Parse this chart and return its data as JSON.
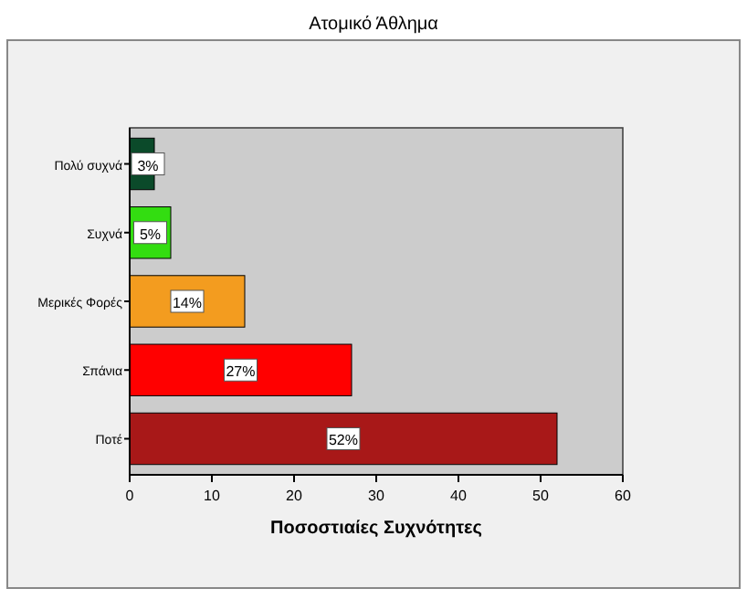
{
  "chart_data": {
    "type": "bar",
    "orientation": "horizontal",
    "title": "Ατομικό Άθλημα",
    "xlabel": "Ποσοστιαίες Συχνότητες",
    "categories": [
      "Πολύ συχνά",
      "Συχνά",
      "Μερικές Φορές",
      "Σπάνια",
      "Ποτέ"
    ],
    "values": [
      3,
      5,
      14,
      27,
      52
    ],
    "colors": [
      "#0b4a2a",
      "#33dd11",
      "#f39c1f",
      "#ff0000",
      "#a81818"
    ],
    "value_labels": [
      "3%",
      "5%",
      "14%",
      "27%",
      "52%"
    ],
    "xlim": [
      0,
      60
    ],
    "xticks": [
      0,
      10,
      20,
      30,
      40,
      50,
      60
    ],
    "grid": false
  }
}
